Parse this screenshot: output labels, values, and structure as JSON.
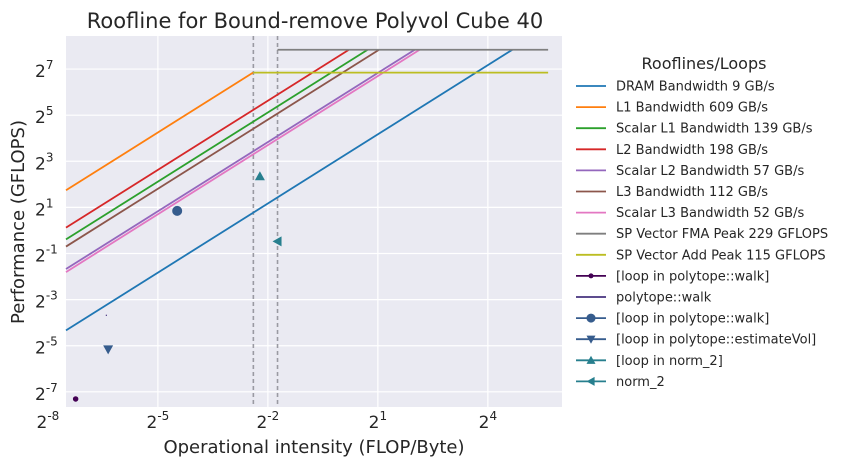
{
  "chart_data": {
    "type": "line",
    "title": "Roofline for Bound-remove Polyvol Cube 40",
    "xlabel": "Operational intensity (FLOP/Byte)",
    "ylabel": "Performance (GFLOPS)",
    "xscale": "log2",
    "yscale": "log2",
    "xlim": [
      0.0055,
      65.0
    ],
    "ylim": [
      0.00495,
      346.0
    ],
    "x_ticks": [
      {
        "exp": "-8",
        "value": 0.00390625
      },
      {
        "exp": "-5",
        "value": 0.03125
      },
      {
        "exp": "-2",
        "value": 0.25
      },
      {
        "exp": "1",
        "value": 2
      },
      {
        "exp": "4",
        "value": 16
      }
    ],
    "y_ticks": [
      {
        "exp": "-7",
        "value": 0.0078125
      },
      {
        "exp": "-5",
        "value": 0.03125
      },
      {
        "exp": "-3",
        "value": 0.125
      },
      {
        "exp": "-1",
        "value": 0.5
      },
      {
        "exp": "1",
        "value": 2
      },
      {
        "exp": "3",
        "value": 8
      },
      {
        "exp": "5",
        "value": 32
      },
      {
        "exp": "7",
        "value": 128
      }
    ],
    "tick_base": "2",
    "grid": true,
    "legend_title": "Rooflines/Loops",
    "legend_position": "outside-right",
    "x_start": 0.0055,
    "vlines": [
      0.19,
      0.3
    ],
    "rooflines": [
      {
        "name": "DRAM Bandwidth 9 GB/s",
        "bandwidth": 9,
        "peak": 229,
        "color": "#1f77b4"
      },
      {
        "name": "L1 Bandwidth 609 GB/s",
        "bandwidth": 609,
        "peak": 115,
        "color": "#ff7f0e"
      },
      {
        "name": "Scalar L1 Bandwidth 139 GB/s",
        "bandwidth": 139,
        "peak": 229,
        "color": "#2ca02c"
      },
      {
        "name": "L2 Bandwidth 198 GB/s",
        "bandwidth": 198,
        "peak": 229,
        "color": "#d62728"
      },
      {
        "name": "Scalar L2 Bandwidth 57 GB/s",
        "bandwidth": 57,
        "peak": 229,
        "color": "#9467bd"
      },
      {
        "name": "L3 Bandwidth 112 GB/s",
        "bandwidth": 112,
        "peak": 229,
        "color": "#8c564b"
      },
      {
        "name": "Scalar L3 Bandwidth 52 GB/s",
        "bandwidth": 52,
        "peak": 229,
        "color": "#e377c2"
      }
    ],
    "peaks": [
      {
        "name": "SP Vector FMA Peak 229 GFLOPS",
        "value": 229,
        "x_from": 0.3,
        "x_to": 50,
        "color": "#7f7f7f"
      },
      {
        "name": "SP Vector Add Peak 115 GFLOPS",
        "value": 115,
        "x_from": 0.19,
        "x_to": 50,
        "color": "#bcbd22"
      }
    ],
    "loops": [
      {
        "name": "[loop in polytope::walk]",
        "x": 0.0066,
        "y": 0.0063,
        "marker": "circle-small",
        "color": "#440154"
      },
      {
        "name": "polytope::walk",
        "x": 0.0118,
        "y": 0.078,
        "marker": "pixel",
        "color": "#46327e"
      },
      {
        "name": "[loop in polytope::walk]",
        "x": 0.045,
        "y": 1.8,
        "marker": "circle",
        "color": "#365c8d"
      },
      {
        "name": "[loop in polytope::estimateVol]",
        "x": 0.0122,
        "y": 0.028,
        "marker": "triangle-down",
        "color": "#365c8d"
      },
      {
        "name": "[loop in norm_2]",
        "x": 0.215,
        "y": 5.1,
        "marker": "triangle-up",
        "color": "#277f8e"
      },
      {
        "name": "norm_2",
        "x": 0.3,
        "y": 0.72,
        "marker": "triangle-left",
        "color": "#277f8e"
      }
    ]
  }
}
